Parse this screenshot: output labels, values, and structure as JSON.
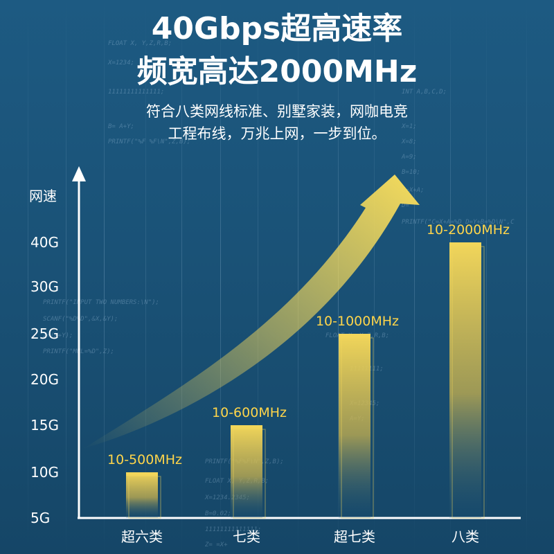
{
  "header": {
    "title_line1": "40Gbps超高速率",
    "title_line2": "频宽高达2000MHz",
    "subtitle_line1": "符合八类网线标准、别墅家装，网咖电竞",
    "subtitle_line2": "工程布线，万兆上网，一步到位。"
  },
  "background_code": [
    "FLOAT X, Y,Z,R,B;",
    "X=1234;",
    "11111111111111;",
    "B= A+Y;",
    "PRINTF(\"%F %F\\N\",Z,B);",
    "INT A,B,C,D;",
    "X=1;",
    "X=8;",
    "A=9;",
    "B=10;",
    "C=X+A;",
    "D=",
    "PRINTF(\"C=X+A=%D D=Y+B=%D\\N\",C",
    "PRINTF(\"INPUT TWO NUMBERS:\\N\");",
    "SCANF(\"%D%D\",&X,&Y);",
    "Z=(X+Y);",
    "PRINTF(\"MUL=%D\",Z);",
    "FLOAT X, Y,Z,R,B;",
    "11111111;",
    "X=12345;",
    "A=Y;",
    "PRINTF(\"%F%F\\N\",Z,B);",
    "FLOAT X, Y,Z,R,B;",
    "X=1234.2345;",
    "B=0.02;",
    "11111111111111;",
    "Z= =X+",
    "B= A+Y"
  ],
  "colors": {
    "background": "#1a5277",
    "bar_fill": "#f2d65a",
    "label_color": "#ffd54a",
    "axis": "#ffffff"
  },
  "chart_data": {
    "type": "bar",
    "ylabel": "网速",
    "yticks": [
      "5G",
      "10G",
      "15G",
      "20G",
      "25G",
      "30G",
      "40G"
    ],
    "categories": [
      "超六类",
      "七类",
      "超七类",
      "八类"
    ],
    "values": [
      10,
      15,
      25,
      40
    ],
    "data_labels": [
      "10-500MHz",
      "10-600MHz",
      "10-1000MHz",
      "10-2000MHz"
    ],
    "trend_arrow": "rising"
  }
}
